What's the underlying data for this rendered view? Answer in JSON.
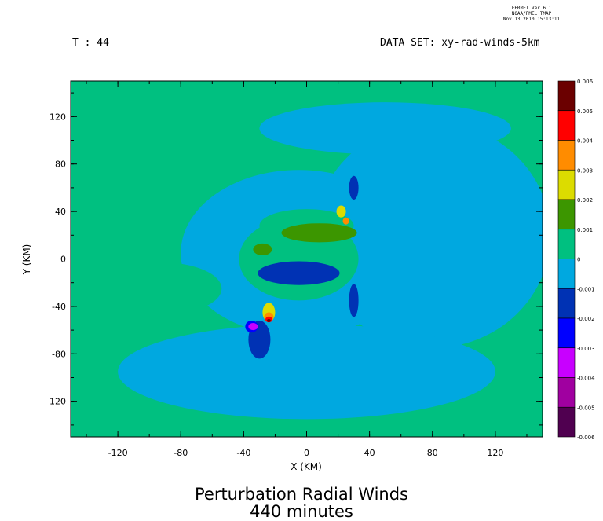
{
  "header": {
    "ferret_lines": [
      "FERRET  Ver.6.1",
      "NOAA/PMEL TMAP",
      "Nov 13 2010 15:13:11"
    ],
    "time_label": "T : 44",
    "dataset_label": "DATA SET: xy-rad-winds-5km"
  },
  "chart_data": {
    "type": "heatmap",
    "title": "Perturbation Radial Winds",
    "subtitle": "440 minutes",
    "xlabel": "X (KM)",
    "ylabel": "Y (KM)",
    "xlim": [
      -150,
      150
    ],
    "ylim": [
      -150,
      150
    ],
    "xticks": [
      -120,
      -80,
      -40,
      0,
      40,
      80,
      120
    ],
    "yticks": [
      120,
      80,
      40,
      0,
      -40,
      -80,
      -120
    ],
    "xtick_labels": [
      "-120",
      "-80",
      "-40",
      "0",
      "40",
      "80",
      "120"
    ],
    "ytick_labels": [
      "120",
      "80",
      "40",
      "0",
      "-40",
      "-80",
      "-120"
    ],
    "colorbar": {
      "levels": [
        "0.006",
        "0.005",
        "0.004",
        "0.003",
        "0.002",
        "0.001",
        "0",
        "-0.001",
        "-0.002",
        "-0.003",
        "-0.004",
        "-0.005",
        "-0.006"
      ],
      "colors": [
        "#6b0000",
        "#ff0000",
        "#ff8c00",
        "#dcdc00",
        "#3c9600",
        "#00c080",
        "#00a8e0",
        "#0032b4",
        "#0000ff",
        "#c800ff",
        "#a000a0",
        "#500050"
      ]
    },
    "field_regions": [
      {
        "level": -0.001,
        "shape": "ellipse",
        "cx": 80,
        "cy": 20,
        "rx": 75,
        "ry": 95
      },
      {
        "level": -0.001,
        "shape": "ellipse",
        "cx": 0,
        "cy": -95,
        "rx": 120,
        "ry": 40
      },
      {
        "level": -0.001,
        "shape": "ellipse",
        "cx": -5,
        "cy": 5,
        "rx": 75,
        "ry": 70
      },
      {
        "level": -0.001,
        "shape": "ellipse",
        "cx": 50,
        "cy": 110,
        "rx": 80,
        "ry": 22
      },
      {
        "level": 0,
        "shape": "ellipse",
        "cx": -5,
        "cy": 0,
        "rx": 38,
        "ry": 35
      },
      {
        "level": 0.001,
        "shape": "ellipse",
        "cx": -92,
        "cy": -25,
        "rx": 38,
        "ry": 22
      },
      {
        "level": 0.001,
        "shape": "ellipse",
        "cx": 0,
        "cy": 28,
        "rx": 30,
        "ry": 14
      },
      {
        "level": 0.002,
        "shape": "ellipse",
        "cx": 8,
        "cy": 22,
        "rx": 24,
        "ry": 8
      },
      {
        "level": 0.002,
        "shape": "ellipse",
        "cx": -28,
        "cy": 8,
        "rx": 6,
        "ry": 5
      },
      {
        "level": 0.003,
        "shape": "ellipse",
        "cx": 22,
        "cy": 40,
        "rx": 3,
        "ry": 5
      },
      {
        "level": 0.004,
        "shape": "ellipse",
        "cx": 25,
        "cy": 32,
        "rx": 2,
        "ry": 3
      },
      {
        "level": -0.002,
        "shape": "ellipse",
        "cx": -5,
        "cy": -12,
        "rx": 26,
        "ry": 10
      },
      {
        "level": -0.002,
        "shape": "ellipse",
        "cx": 30,
        "cy": 60,
        "rx": 3,
        "ry": 10
      },
      {
        "level": -0.002,
        "shape": "ellipse",
        "cx": 30,
        "cy": -35,
        "rx": 3,
        "ry": 14
      },
      {
        "level": -0.002,
        "shape": "ellipse",
        "cx": -30,
        "cy": -68,
        "rx": 7,
        "ry": 16
      },
      {
        "level": -0.003,
        "shape": "ellipse",
        "cx": -35,
        "cy": -57,
        "rx": 4,
        "ry": 5
      },
      {
        "level": -0.004,
        "shape": "ellipse",
        "cx": -34,
        "cy": -57,
        "rx": 3,
        "ry": 3
      },
      {
        "level": 0.003,
        "shape": "ellipse",
        "cx": -24,
        "cy": -45,
        "rx": 4,
        "ry": 8
      },
      {
        "level": 0.004,
        "shape": "ellipse",
        "cx": -24,
        "cy": -49,
        "rx": 3,
        "ry": 4
      },
      {
        "level": 0.005,
        "shape": "ellipse",
        "cx": -24,
        "cy": -51,
        "rx": 2.2,
        "ry": 2.5
      },
      {
        "level": 0.006,
        "shape": "ellipse",
        "cx": -24,
        "cy": -52,
        "rx": 1.2,
        "ry": 1.3
      }
    ]
  }
}
